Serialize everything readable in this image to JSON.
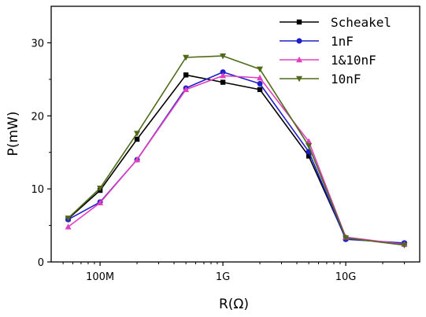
{
  "chart_data": {
    "type": "line",
    "xscale": "log",
    "xlim": [
      40000000,
      40000000000
    ],
    "ylim": [
      0,
      35
    ],
    "xlabel": "R(Ω)",
    "ylabel": "P(mW)",
    "x_ticks": [
      {
        "value": 100000000,
        "label": "100M"
      },
      {
        "value": 1000000000,
        "label": "1G"
      },
      {
        "value": 10000000000,
        "label": "10G"
      }
    ],
    "y_ticks": [
      {
        "value": 0,
        "label": "0"
      },
      {
        "value": 10,
        "label": "10"
      },
      {
        "value": 20,
        "label": "20"
      },
      {
        "value": 30,
        "label": "30"
      }
    ],
    "legend_position": "top-right",
    "grid": false,
    "series": [
      {
        "name": "Scheakel",
        "color": "#000000",
        "marker": "square",
        "x": [
          55000000,
          100000000,
          200000000,
          500000000,
          1000000000,
          2000000000,
          5000000000,
          10000000000,
          30000000000
        ],
        "y": [
          5.9,
          9.8,
          16.8,
          25.6,
          24.6,
          23.6,
          14.5,
          3.2,
          2.5
        ]
      },
      {
        "name": "1nF",
        "color": "#1f1fc8",
        "marker": "circle",
        "x": [
          55000000,
          100000000,
          200000000,
          500000000,
          1000000000,
          2000000000,
          5000000000,
          10000000000,
          30000000000
        ],
        "y": [
          5.8,
          8.2,
          14.0,
          23.8,
          26.0,
          24.4,
          15.1,
          3.1,
          2.6
        ]
      },
      {
        "name": "1&10nF",
        "color": "#e040c0",
        "marker": "triangle-up",
        "x": [
          55000000,
          100000000,
          200000000,
          500000000,
          1000000000,
          2000000000,
          5000000000,
          10000000000,
          30000000000
        ],
        "y": [
          4.8,
          8.1,
          14.0,
          23.6,
          25.5,
          25.2,
          16.5,
          3.4,
          2.4
        ]
      },
      {
        "name": "10nF",
        "color": "#4f6a18",
        "marker": "triangle-down",
        "x": [
          55000000,
          100000000,
          200000000,
          500000000,
          1000000000,
          2000000000,
          5000000000,
          10000000000,
          30000000000
        ],
        "y": [
          6.0,
          10.1,
          17.6,
          28.0,
          28.2,
          26.4,
          15.9,
          3.3,
          2.3
        ]
      }
    ]
  }
}
